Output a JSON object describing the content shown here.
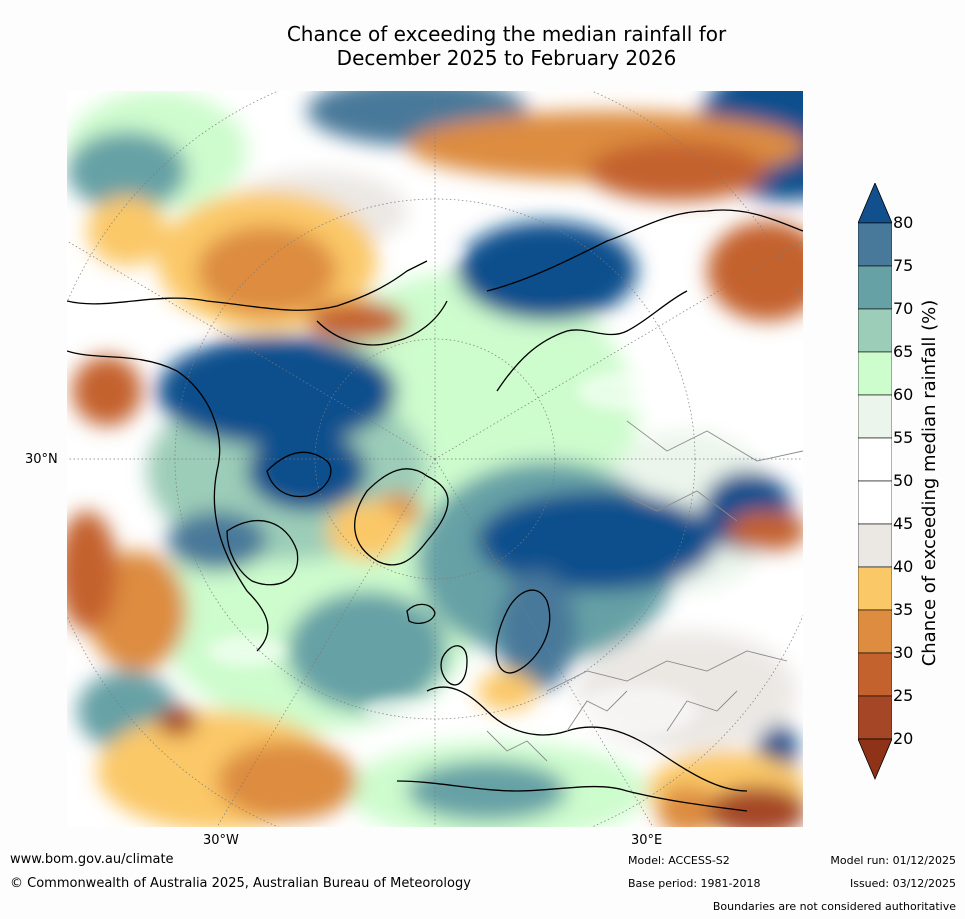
{
  "title": {
    "line1": "Chance of exceeding the median rainfall for",
    "line2": "December 2025 to February 2026"
  },
  "map": {
    "lat_label": "30°N",
    "lon_labels": [
      "30°W",
      "30°E"
    ]
  },
  "colorbar": {
    "label": "Chance of exceeding median rainfall (%)",
    "ticks": [
      "80",
      "75",
      "70",
      "65",
      "60",
      "55",
      "50",
      "45",
      "40",
      "35",
      "30",
      "25",
      "20"
    ],
    "bands": [
      {
        "range": "75-80",
        "color": "#49799a"
      },
      {
        "range": "70-75",
        "color": "#66a1a6"
      },
      {
        "range": "65-70",
        "color": "#9ccdb8"
      },
      {
        "range": "60-65",
        "color": "#cdfccd"
      },
      {
        "range": "55-60",
        "color": "#ebf5eb"
      },
      {
        "range": "50-55",
        "color": "#ffffff"
      },
      {
        "range": "45-50",
        "color": "#ffffff"
      },
      {
        "range": "40-45",
        "color": "#ebe8e4"
      },
      {
        "range": "35-40",
        "color": "#fbc868"
      },
      {
        "range": "30-35",
        "color": "#dd8c40"
      },
      {
        "range": "25-30",
        "color": "#c4622e"
      },
      {
        "range": "20-25",
        "color": "#a54727"
      }
    ],
    "over_color": "#11508d",
    "under_color": "#8e3318"
  },
  "footer": {
    "url": "www.bom.gov.au/climate",
    "copyright": "© Commonwealth of Australia 2025, Australian Bureau of Meteorology",
    "model": "Model: ACCESS-S2",
    "base_period": "Base period: 1981-2018",
    "model_run": "Model run: 01/12/2025",
    "issued": "Issued: 03/12/2025",
    "disclaimer": "Boundaries are not considered authoritative"
  }
}
